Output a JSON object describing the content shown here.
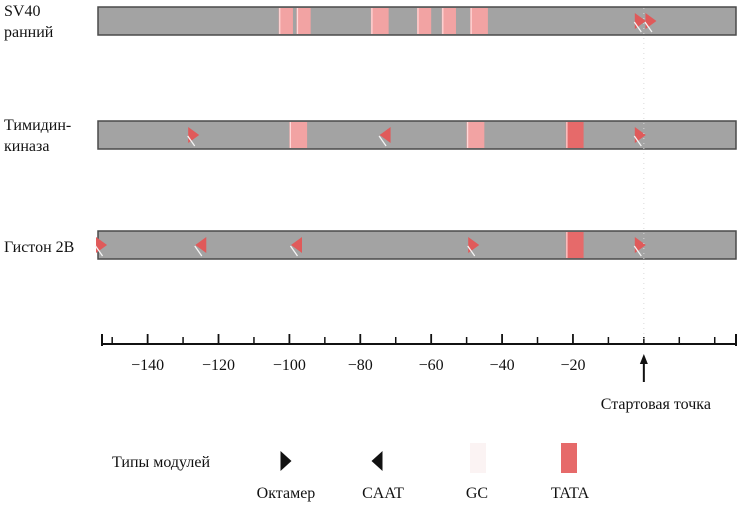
{
  "colors": {
    "bar_fill": "#a3a3a3",
    "bar_edge": "#4a4a4a",
    "gc": "#f2a3a3",
    "tata": "#e66a6a",
    "arrow": "#e05a5a"
  },
  "tracks": [
    {
      "name_lines": [
        "SV40",
        "ранний"
      ],
      "elements": [
        {
          "type": "GC",
          "from": -103,
          "to": -99
        },
        {
          "type": "GC",
          "from": -98,
          "to": -94
        },
        {
          "type": "GC",
          "from": -77,
          "to": -72
        },
        {
          "type": "GC",
          "from": -64,
          "to": -60
        },
        {
          "type": "GC",
          "from": -57,
          "to": -53
        },
        {
          "type": "GC",
          "from": -49,
          "to": -44
        },
        {
          "type": "octamer",
          "at": -1
        },
        {
          "type": "octamer",
          "at": 2
        }
      ]
    },
    {
      "name_lines": [
        "Тимидин-",
        "киназа"
      ],
      "elements": [
        {
          "type": "octamer",
          "at": -127
        },
        {
          "type": "GC",
          "from": -100,
          "to": -95
        },
        {
          "type": "CAAT",
          "at": -73
        },
        {
          "type": "GC",
          "from": -50,
          "to": -45
        },
        {
          "type": "TATA",
          "from": -22,
          "to": -17
        },
        {
          "type": "octamer",
          "at": -1
        }
      ]
    },
    {
      "name_lines": [
        "Гистон 2В"
      ],
      "elements": [
        {
          "type": "octamer",
          "at": -153
        },
        {
          "type": "CAAT",
          "at": -125
        },
        {
          "type": "CAAT",
          "at": -98
        },
        {
          "type": "octamer",
          "at": -48
        },
        {
          "type": "TATA",
          "from": -22,
          "to": -17
        },
        {
          "type": "octamer",
          "at": -1
        }
      ]
    }
  ],
  "axis": {
    "min": -154,
    "max": 26,
    "ticks": [
      -140,
      -120,
      -100,
      -80,
      -60,
      -40,
      -20
    ],
    "minor_ticks": [
      -150,
      -130,
      -110,
      -90,
      -70,
      -50,
      -30,
      -10,
      0,
      10,
      20
    ],
    "tick_labels": [
      "−140",
      "−120",
      "−100",
      "−80",
      "−60",
      "−40",
      "−20"
    ],
    "start_label": "Стартовая точка",
    "start_at": 0
  },
  "legend": {
    "title": "Типы модулей",
    "items": [
      {
        "kind": "octamer",
        "label": "Октамер"
      },
      {
        "kind": "CAAT",
        "label": "CAAT"
      },
      {
        "kind": "GC",
        "label": "GC"
      },
      {
        "kind": "TATA",
        "label": "TATA"
      }
    ]
  }
}
